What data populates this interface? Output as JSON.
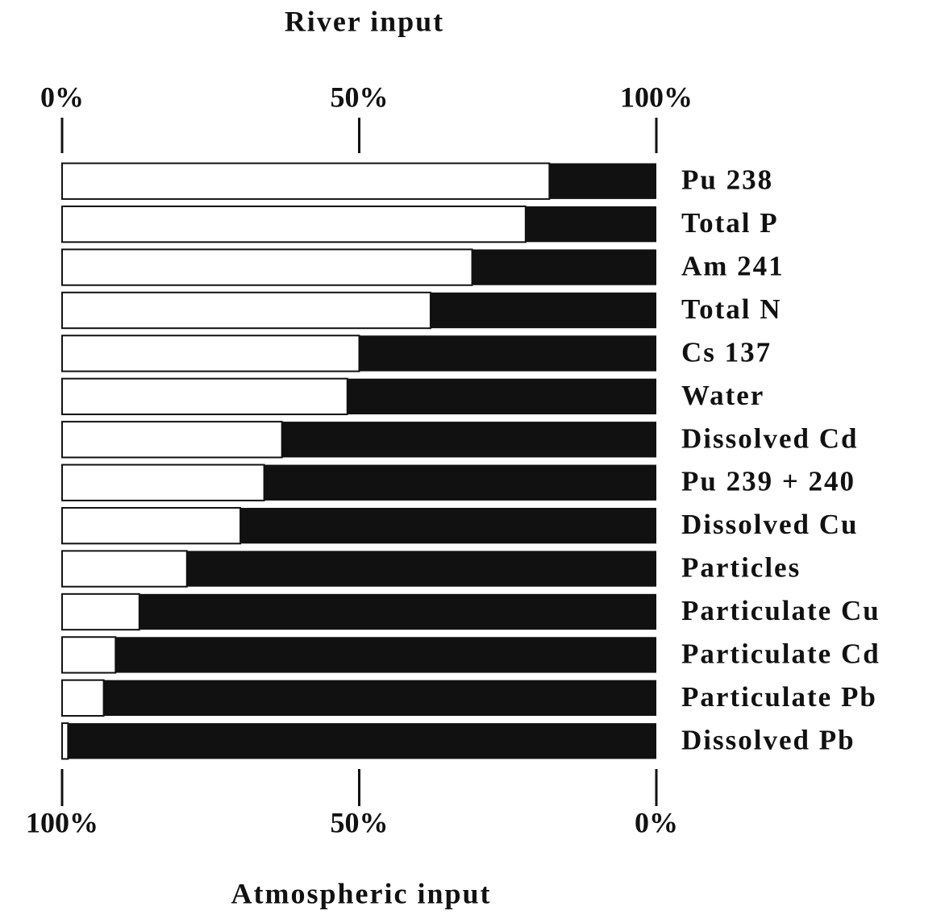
{
  "chart_data": {
    "type": "bar",
    "orientation": "horizontal",
    "stacked": true,
    "categories": [
      "Pu 238",
      "Total P",
      "Am 241",
      "Total N",
      "Cs 137",
      "Water",
      "Dissolved Cd",
      "Pu 239 + 240",
      "Dissolved Cu",
      "Particles",
      "Particulate Cu",
      "Particulate Cd",
      "Particulate Pb",
      "Dissolved Pb"
    ],
    "series": [
      {
        "name": "River input",
        "color": "#ffffff",
        "values": [
          82,
          78,
          69,
          62,
          50,
          48,
          37,
          34,
          30,
          21,
          13,
          9,
          7,
          1
        ]
      },
      {
        "name": "Atmospheric input",
        "color": "#111111",
        "axis": "x2",
        "values": [
          18,
          22,
          31,
          38,
          50,
          52,
          63,
          66,
          70,
          79,
          87,
          91,
          93,
          99
        ]
      }
    ],
    "xlim": [
      0,
      100
    ],
    "xticks": [
      {
        "value": 0,
        "label": "0%"
      },
      {
        "value": 50,
        "label": "50%"
      },
      {
        "value": 100,
        "label": "100%"
      }
    ],
    "x2lim": [
      100,
      0
    ],
    "x2ticks": [
      {
        "value": 100,
        "label": "100%"
      },
      {
        "value": 50,
        "label": "50%"
      },
      {
        "value": 0,
        "label": "0%"
      }
    ]
  }
}
